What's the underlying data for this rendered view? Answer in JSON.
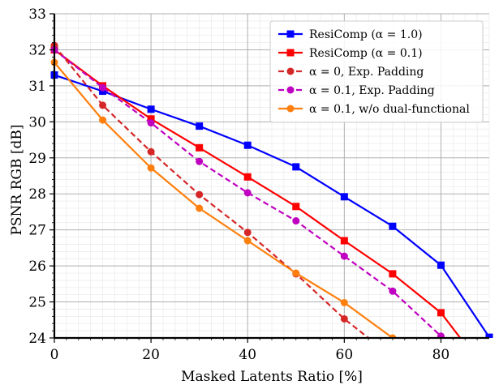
{
  "chart_data": {
    "type": "line",
    "title": "",
    "xlabel": "Masked Latents Ratio [%]",
    "ylabel": "PSNR RGB [dB]",
    "xlim": [
      0,
      90
    ],
    "ylim": [
      24,
      33
    ],
    "x_ticks": [
      "0",
      "20",
      "40",
      "60",
      "80"
    ],
    "y_ticks": [
      "24",
      "25",
      "26",
      "27",
      "28",
      "29",
      "30",
      "31",
      "32",
      "33"
    ],
    "grid": "major and minor",
    "legend_position": "top-right",
    "series": [
      {
        "name": "ResiComp (α = 1.0)",
        "color": "#0000ff",
        "linestyle": "solid",
        "marker": "square",
        "x": [
          0,
          10,
          20,
          30,
          40,
          50,
          60,
          70,
          80,
          90
        ],
        "y": [
          31.3,
          30.85,
          30.35,
          29.88,
          29.35,
          28.75,
          27.92,
          27.1,
          26.02,
          24.02
        ]
      },
      {
        "name": "ResiComp (α = 0.1)",
        "color": "#ff0000",
        "linestyle": "solid",
        "marker": "square",
        "x": [
          0,
          10,
          20,
          30,
          40,
          50,
          60,
          70,
          80,
          84
        ],
        "y": [
          32.0,
          31.0,
          30.08,
          29.28,
          28.47,
          27.65,
          26.7,
          25.78,
          24.7,
          24.0
        ]
      },
      {
        "name": "α = 0, Exp. Padding",
        "color": "#d62728",
        "linestyle": "dashed",
        "marker": "circle",
        "x": [
          0,
          10,
          20,
          30,
          40,
          50,
          60,
          65
        ],
        "y": [
          32.12,
          30.46,
          29.17,
          27.98,
          26.93,
          25.78,
          24.53,
          24.0
        ]
      },
      {
        "name": "α = 0.1, Exp. Padding",
        "color": "#c000c0",
        "linestyle": "dashed",
        "marker": "circle",
        "x": [
          0,
          10,
          20,
          30,
          40,
          50,
          60,
          70,
          80
        ],
        "y": [
          32.0,
          30.95,
          29.97,
          28.9,
          28.03,
          27.25,
          26.27,
          25.3,
          24.05
        ]
      },
      {
        "name": "α = 0.1, w/o dual-functional",
        "color": "#ff7f0e",
        "linestyle": "solid",
        "marker": "circle",
        "x": [
          0,
          10,
          20,
          30,
          40,
          50,
          60,
          70
        ],
        "y": [
          31.65,
          30.05,
          28.72,
          27.6,
          26.7,
          25.8,
          24.98,
          24.0
        ]
      }
    ]
  }
}
